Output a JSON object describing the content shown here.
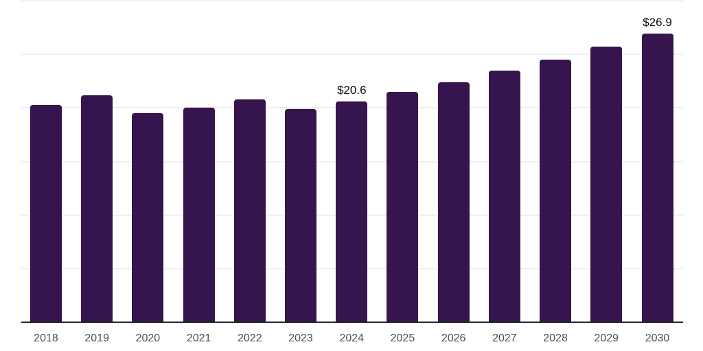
{
  "chart_data": {
    "type": "bar",
    "title": "",
    "xlabel": "",
    "ylabel": "",
    "categories": [
      "2018",
      "2019",
      "2020",
      "2021",
      "2022",
      "2023",
      "2024",
      "2025",
      "2026",
      "2027",
      "2028",
      "2029",
      "2030"
    ],
    "values": [
      20.3,
      21.2,
      19.5,
      20.0,
      20.8,
      19.9,
      20.6,
      21.5,
      22.4,
      23.5,
      24.5,
      25.7,
      26.9
    ],
    "data_labels": [
      {
        "category": "2024",
        "text": "$20.6"
      },
      {
        "category": "2030",
        "text": "$26.9"
      }
    ],
    "value_prefix": "$",
    "ylim": [
      0,
      30
    ],
    "gridline_step": 5,
    "grid": "horizontal",
    "y_axis_labels_visible": false,
    "legend_position": "none",
    "colors": {
      "bar": "#36154E",
      "axis_line": "#262626",
      "gridline": "#F0F0F2",
      "tick_label": "#4F4F4F",
      "data_label": "#0D0D0D",
      "background": "#FFFFFF"
    }
  }
}
